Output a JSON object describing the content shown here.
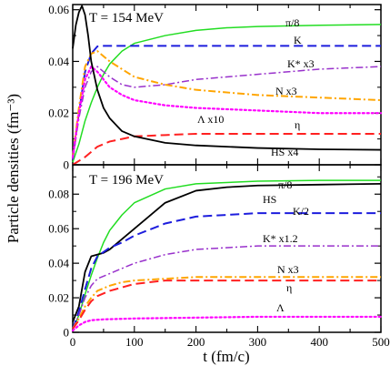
{
  "chart_data": {
    "type": "line",
    "xlabel": "t (fm/c)",
    "ylabel": "Particle densities (fm⁻³)",
    "xlim": [
      0,
      500
    ],
    "x_ticks": [
      0,
      100,
      200,
      300,
      400,
      500
    ],
    "grid": false,
    "legend": "inline labels next to curves",
    "panels": [
      {
        "title": "T = 154 MeV",
        "ylim": [
          0,
          0.062
        ],
        "y_ticks": [
          0,
          0.02,
          0.04,
          0.06
        ],
        "y_tick_labels": [
          "0",
          "0.02",
          "0.04",
          "0.06"
        ],
        "series": [
          {
            "name": "π/8",
            "color": "#22dd22",
            "dash": "",
            "width": 1.5,
            "points": [
              [
                0,
                0.001
              ],
              [
                10,
                0.008
              ],
              [
                20,
                0.017
              ],
              [
                30,
                0.024
              ],
              [
                40,
                0.03
              ],
              [
                50,
                0.035
              ],
              [
                60,
                0.039
              ],
              [
                80,
                0.044
              ],
              [
                100,
                0.047
              ],
              [
                150,
                0.05
              ],
              [
                200,
                0.052
              ],
              [
                250,
                0.053
              ],
              [
                300,
                0.0535
              ],
              [
                400,
                0.054
              ],
              [
                500,
                0.0543
              ]
            ]
          },
          {
            "name": "K",
            "color": "#1d1ddd",
            "dash": "10,5",
            "width": 2,
            "points": [
              [
                0,
                0.002
              ],
              [
                10,
                0.02
              ],
              [
                20,
                0.036
              ],
              [
                30,
                0.043
              ],
              [
                40,
                0.0458
              ],
              [
                50,
                0.046
              ],
              [
                100,
                0.046
              ],
              [
                200,
                0.046
              ],
              [
                300,
                0.046
              ],
              [
                400,
                0.046
              ],
              [
                500,
                0.046
              ]
            ]
          },
          {
            "name": "K* x3",
            "color": "#9932cc",
            "dash": "8,3,2,3",
            "width": 1.5,
            "points": [
              [
                0,
                0.002
              ],
              [
                10,
                0.018
              ],
              [
                20,
                0.03
              ],
              [
                30,
                0.036
              ],
              [
                40,
                0.038
              ],
              [
                60,
                0.034
              ],
              [
                80,
                0.031
              ],
              [
                100,
                0.03
              ],
              [
                150,
                0.031
              ],
              [
                200,
                0.033
              ],
              [
                300,
                0.035
              ],
              [
                400,
                0.037
              ],
              [
                500,
                0.038
              ]
            ]
          },
          {
            "name": "N x3",
            "color": "#ffa500",
            "dash": "8,3,2,3",
            "width": 2,
            "points": [
              [
                0,
                0.003
              ],
              [
                10,
                0.022
              ],
              [
                20,
                0.038
              ],
              [
                30,
                0.043
              ],
              [
                40,
                0.044
              ],
              [
                60,
                0.04
              ],
              [
                80,
                0.037
              ],
              [
                100,
                0.034
              ],
              [
                150,
                0.031
              ],
              [
                200,
                0.029
              ],
              [
                300,
                0.027
              ],
              [
                400,
                0.026
              ],
              [
                500,
                0.025
              ]
            ]
          },
          {
            "name": "Λ x10",
            "color": "#ff00ff",
            "dash": "2,3",
            "width": 2.2,
            "points": [
              [
                0,
                0.003
              ],
              [
                10,
                0.02
              ],
              [
                20,
                0.033
              ],
              [
                30,
                0.038
              ],
              [
                40,
                0.036
              ],
              [
                60,
                0.03
              ],
              [
                80,
                0.027
              ],
              [
                100,
                0.025
              ],
              [
                150,
                0.023
              ],
              [
                200,
                0.022
              ],
              [
                300,
                0.021
              ],
              [
                400,
                0.02
              ],
              [
                500,
                0.02
              ]
            ]
          },
          {
            "name": "η",
            "color": "#ff2020",
            "dash": "10,5",
            "width": 2,
            "points": [
              [
                0,
                0.0
              ],
              [
                20,
                0.003
              ],
              [
                40,
                0.007
              ],
              [
                60,
                0.009
              ],
              [
                80,
                0.01
              ],
              [
                100,
                0.011
              ],
              [
                150,
                0.0115
              ],
              [
                200,
                0.012
              ],
              [
                300,
                0.012
              ],
              [
                400,
                0.012
              ],
              [
                500,
                0.012
              ]
            ]
          },
          {
            "name": "HS x4",
            "color": "#000000",
            "dash": "",
            "width": 1.8,
            "points": [
              [
                0,
                0.045
              ],
              [
                5,
                0.054
              ],
              [
                10,
                0.059
              ],
              [
                15,
                0.0615
              ],
              [
                20,
                0.058
              ],
              [
                25,
                0.05
              ],
              [
                30,
                0.04
              ],
              [
                40,
                0.029
              ],
              [
                50,
                0.022
              ],
              [
                60,
                0.018
              ],
              [
                80,
                0.013
              ],
              [
                100,
                0.011
              ],
              [
                150,
                0.0085
              ],
              [
                200,
                0.0075
              ],
              [
                300,
                0.0065
              ],
              [
                400,
                0.006
              ],
              [
                500,
                0.0058
              ]
            ]
          }
        ],
        "labels": [
          "T = 154 MeV",
          "π/8",
          "K",
          "K* x3",
          "N x3",
          "Λ x10",
          "η",
          "HS x4"
        ]
      },
      {
        "title": "T = 196 MeV",
        "ylim": [
          0,
          0.097
        ],
        "y_ticks": [
          0,
          0.02,
          0.04,
          0.06,
          0.08
        ],
        "y_tick_labels": [
          "0",
          "0.02",
          "0.04",
          "0.06",
          "0.08"
        ],
        "series": [
          {
            "name": "π/8",
            "color": "#22dd22",
            "dash": "",
            "width": 1.5,
            "points": [
              [
                0,
                0.001
              ],
              [
                10,
                0.01
              ],
              [
                20,
                0.022
              ],
              [
                30,
                0.033
              ],
              [
                40,
                0.043
              ],
              [
                50,
                0.052
              ],
              [
                60,
                0.059
              ],
              [
                80,
                0.068
              ],
              [
                100,
                0.075
              ],
              [
                150,
                0.083
              ],
              [
                200,
                0.086
              ],
              [
                300,
                0.0875
              ],
              [
                400,
                0.088
              ],
              [
                500,
                0.088
              ]
            ]
          },
          {
            "name": "HS",
            "color": "#000000",
            "dash": "",
            "width": 1.8,
            "points": [
              [
                0,
                0.006
              ],
              [
                10,
                0.015
              ],
              [
                20,
                0.035
              ],
              [
                30,
                0.044
              ],
              [
                40,
                0.045
              ],
              [
                50,
                0.046
              ],
              [
                60,
                0.048
              ],
              [
                80,
                0.054
              ],
              [
                100,
                0.06
              ],
              [
                120,
                0.066
              ],
              [
                150,
                0.075
              ],
              [
                200,
                0.082
              ],
              [
                250,
                0.084
              ],
              [
                300,
                0.085
              ],
              [
                400,
                0.0855
              ],
              [
                500,
                0.086
              ]
            ]
          },
          {
            "name": "K/2",
            "color": "#1d1ddd",
            "dash": "10,5",
            "width": 2,
            "points": [
              [
                0,
                0.002
              ],
              [
                10,
                0.012
              ],
              [
                20,
                0.025
              ],
              [
                30,
                0.037
              ],
              [
                40,
                0.044
              ],
              [
                60,
                0.049
              ],
              [
                80,
                0.052
              ],
              [
                100,
                0.056
              ],
              [
                150,
                0.063
              ],
              [
                200,
                0.067
              ],
              [
                300,
                0.069
              ],
              [
                400,
                0.069
              ],
              [
                500,
                0.069
              ]
            ]
          },
          {
            "name": "K* x1.2",
            "color": "#9932cc",
            "dash": "8,3,2,3",
            "width": 1.5,
            "points": [
              [
                0,
                0.002
              ],
              [
                10,
                0.01
              ],
              [
                20,
                0.02
              ],
              [
                30,
                0.027
              ],
              [
                40,
                0.031
              ],
              [
                60,
                0.034
              ],
              [
                80,
                0.037
              ],
              [
                100,
                0.04
              ],
              [
                150,
                0.045
              ],
              [
                200,
                0.048
              ],
              [
                300,
                0.05
              ],
              [
                400,
                0.05
              ],
              [
                500,
                0.05
              ]
            ]
          },
          {
            "name": "N x3",
            "color": "#ffa500",
            "dash": "8,3,2,3",
            "width": 2,
            "points": [
              [
                0,
                0.002
              ],
              [
                10,
                0.008
              ],
              [
                20,
                0.015
              ],
              [
                30,
                0.02
              ],
              [
                40,
                0.024
              ],
              [
                60,
                0.027
              ],
              [
                80,
                0.029
              ],
              [
                100,
                0.03
              ],
              [
                150,
                0.031
              ],
              [
                200,
                0.032
              ],
              [
                300,
                0.032
              ],
              [
                400,
                0.032
              ],
              [
                500,
                0.032
              ]
            ]
          },
          {
            "name": "η",
            "color": "#ff2020",
            "dash": "10,5",
            "width": 2,
            "points": [
              [
                0,
                0.002
              ],
              [
                10,
                0.007
              ],
              [
                20,
                0.013
              ],
              [
                30,
                0.018
              ],
              [
                40,
                0.021
              ],
              [
                60,
                0.024
              ],
              [
                80,
                0.026
              ],
              [
                100,
                0.028
              ],
              [
                150,
                0.03
              ],
              [
                200,
                0.03
              ],
              [
                300,
                0.03
              ],
              [
                400,
                0.03
              ],
              [
                500,
                0.03
              ]
            ]
          },
          {
            "name": "Λ",
            "color": "#ff00ff",
            "dash": "2,3",
            "width": 2.2,
            "points": [
              [
                0,
                0.001
              ],
              [
                10,
                0.004
              ],
              [
                20,
                0.006
              ],
              [
                30,
                0.007
              ],
              [
                50,
                0.0075
              ],
              [
                100,
                0.008
              ],
              [
                200,
                0.0085
              ],
              [
                300,
                0.009
              ],
              [
                400,
                0.009
              ],
              [
                500,
                0.009
              ]
            ]
          }
        ],
        "labels": [
          "T = 196 MeV",
          "π/8",
          "HS",
          "K/2",
          "K* x1.2",
          "N x3",
          "η",
          "Λ"
        ]
      }
    ]
  }
}
